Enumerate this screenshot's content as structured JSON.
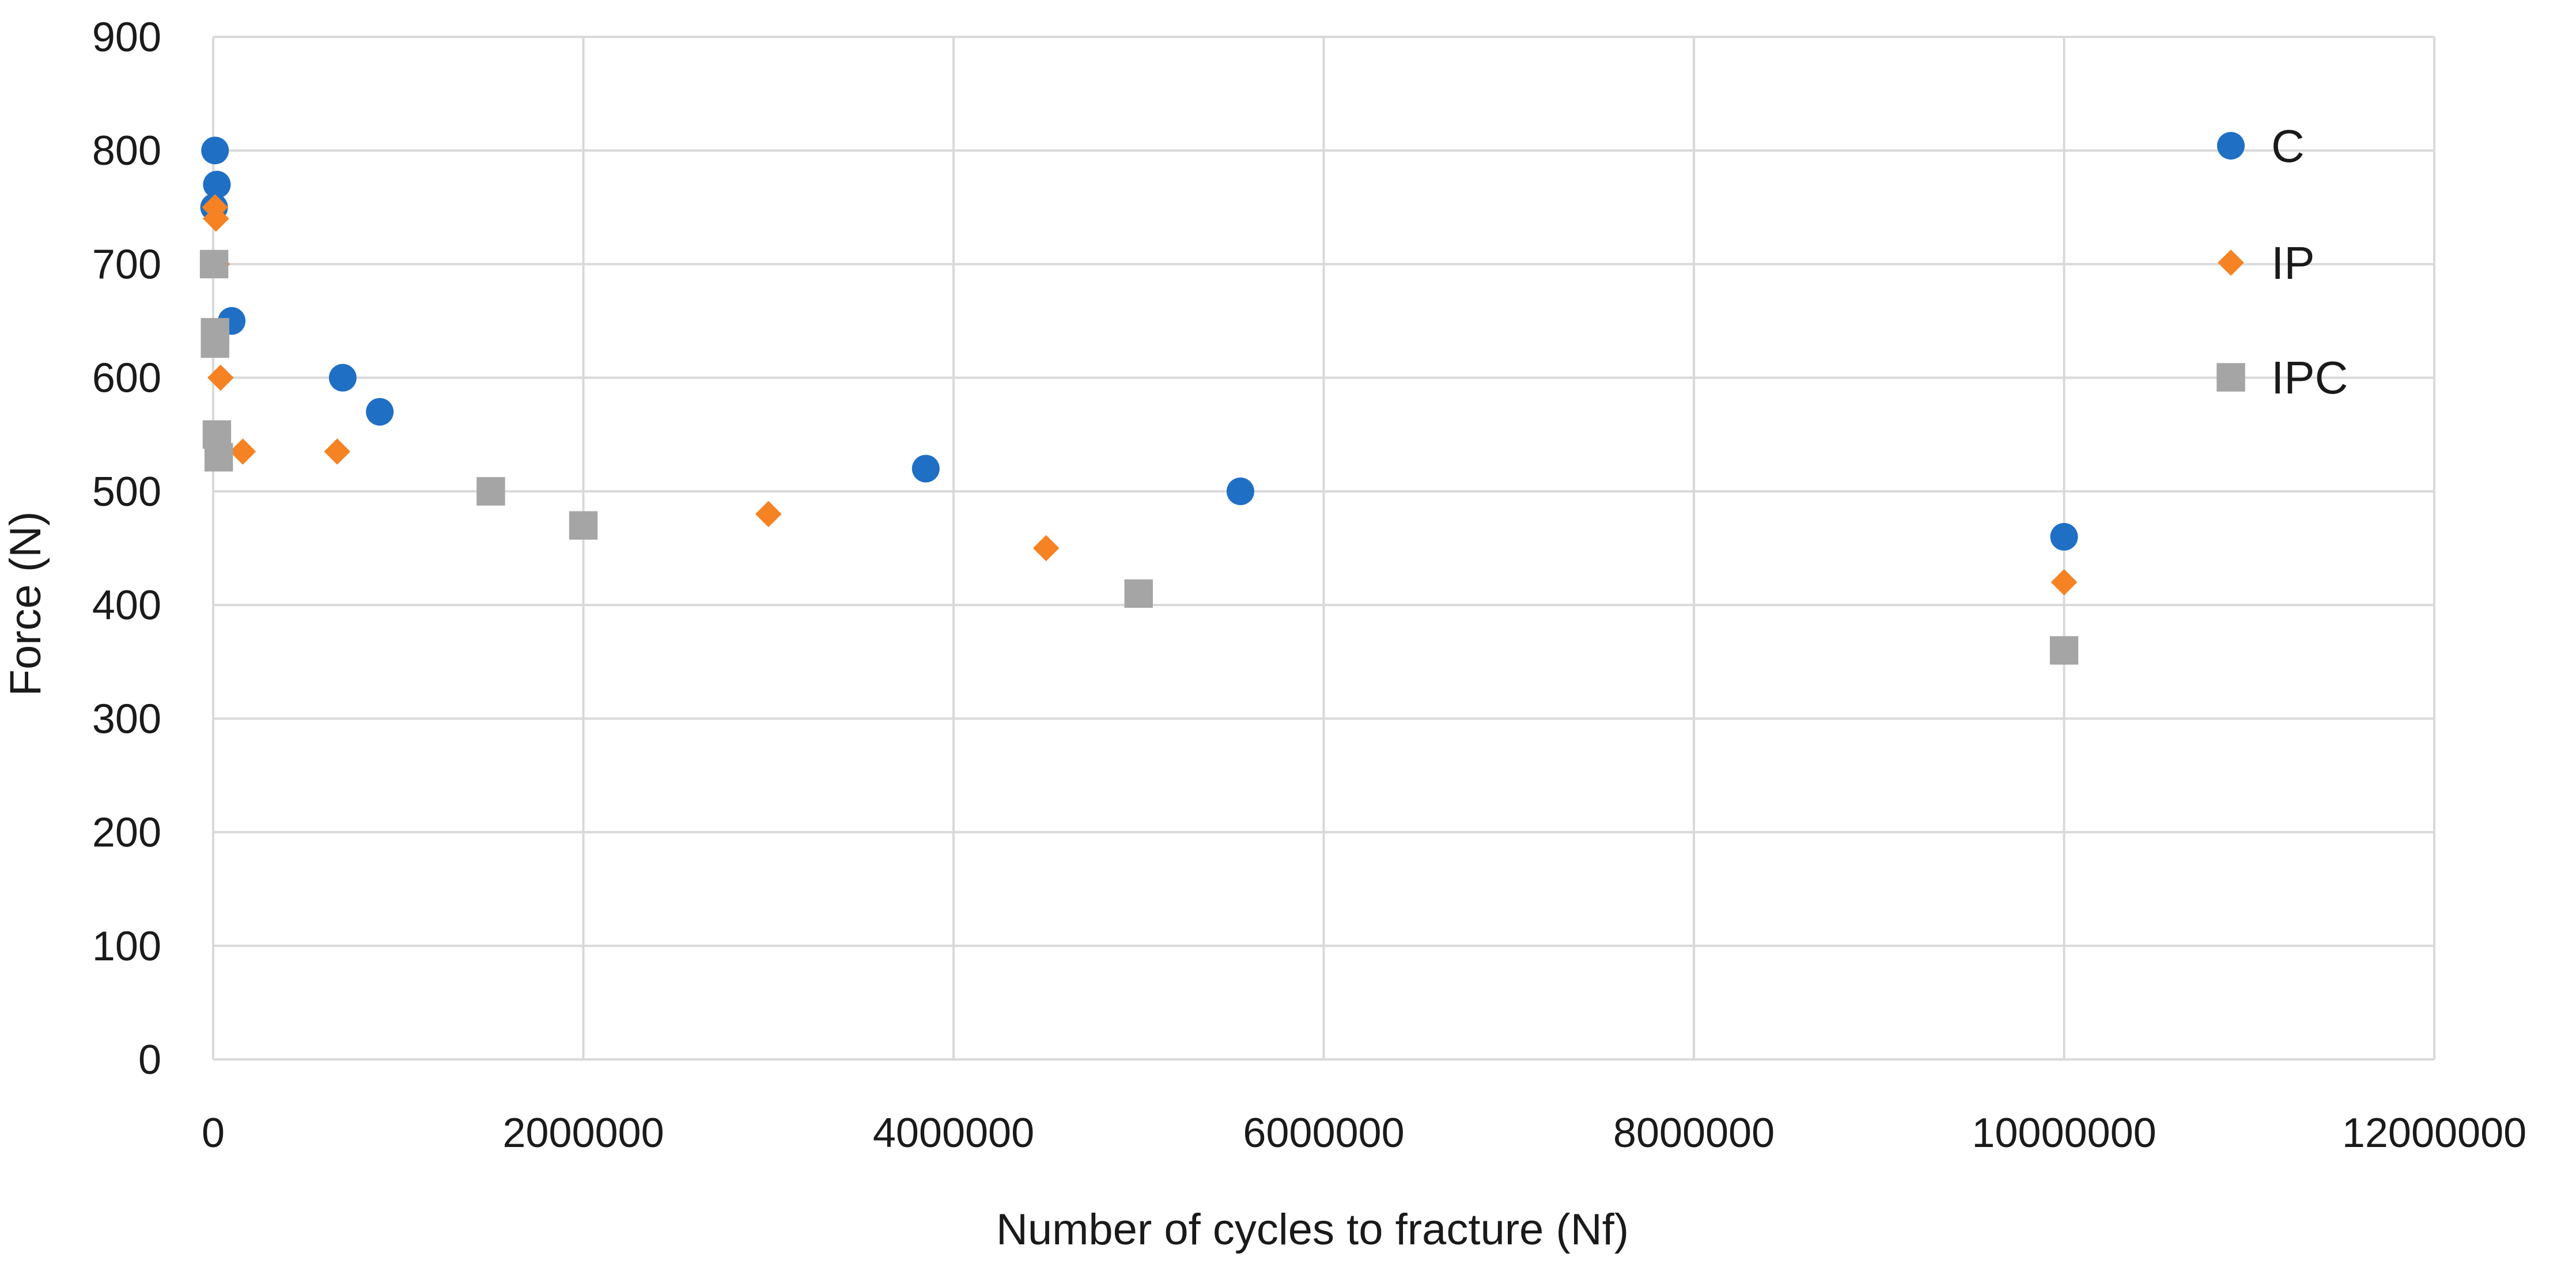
{
  "chart_data": {
    "type": "scatter",
    "title": "",
    "xlabel": "Number of cycles to fracture (Nf)",
    "ylabel": "Force (N)",
    "xlim": [
      0,
      12000000
    ],
    "ylim": [
      0,
      900
    ],
    "x_ticks": [
      0,
      2000000,
      4000000,
      6000000,
      8000000,
      10000000,
      12000000
    ],
    "y_ticks": [
      0,
      100,
      200,
      300,
      400,
      500,
      600,
      700,
      800,
      900
    ],
    "x_tick_labels": [
      "0",
      "2000000",
      "4000000",
      "6000000",
      "8000000",
      "10000000",
      "12000000"
    ],
    "y_tick_labels": [
      "0",
      "100",
      "200",
      "300",
      "400",
      "500",
      "600",
      "700",
      "800",
      "900"
    ],
    "grid": true,
    "legend_position": "right",
    "series": [
      {
        "name": "C",
        "marker": "circle",
        "color": "#1f6fc5",
        "x": [
          10000,
          20000,
          5000,
          100000,
          700000,
          900000,
          3850000,
          5550000,
          10000000
        ],
        "y": [
          800,
          770,
          750,
          650,
          600,
          570,
          520,
          500,
          460
        ]
      },
      {
        "name": "IP",
        "marker": "diamond",
        "color": "#f58223",
        "x": [
          10000,
          15000,
          20000,
          40000,
          160000,
          670000,
          3000000,
          4500000,
          10000000
        ],
        "y": [
          750,
          740,
          700,
          600,
          535,
          535,
          480,
          450,
          420
        ]
      },
      {
        "name": "IPC",
        "marker": "square",
        "color": "#a5a5a5",
        "x": [
          5000,
          10000,
          10000,
          20000,
          30000,
          1500000,
          2000000,
          5000000,
          10000000
        ],
        "y": [
          700,
          640,
          630,
          550,
          530,
          500,
          470,
          410,
          360
        ]
      }
    ]
  }
}
